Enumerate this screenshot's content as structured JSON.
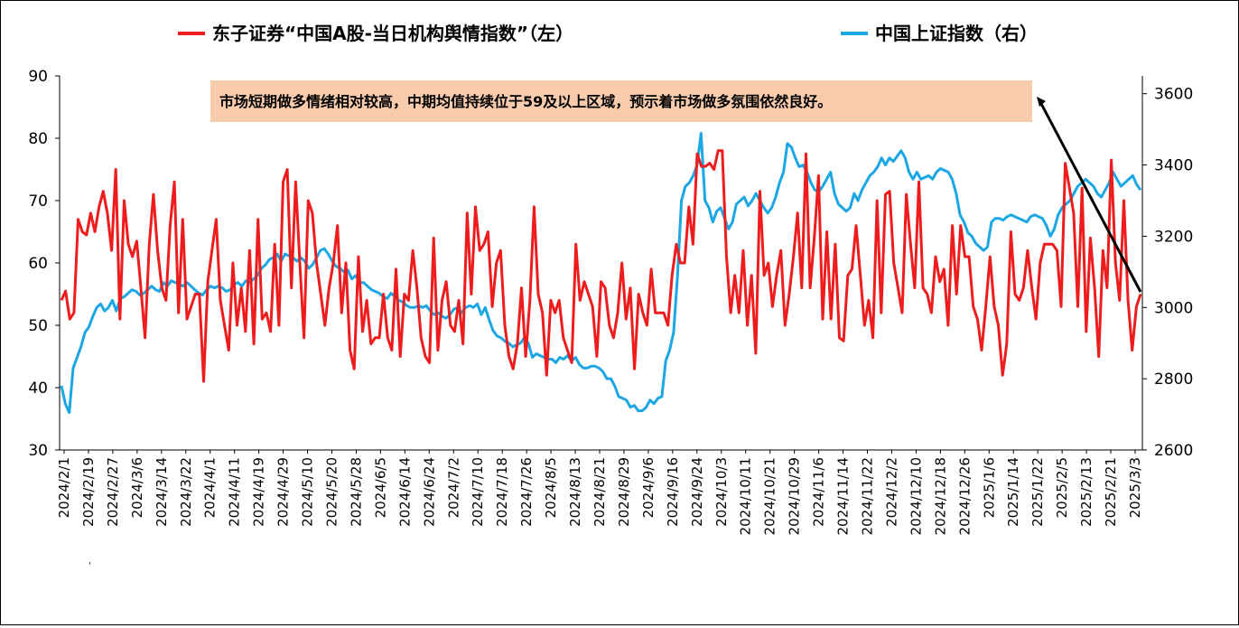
{
  "colors": {
    "series_left": "#ee1c1c",
    "series_right": "#1ba6e4",
    "annotation_bg": "#f8cbad",
    "axis": "#000000",
    "arrow": "#000000"
  },
  "chart_data": {
    "type": "line",
    "title": "",
    "legend": {
      "position": "top",
      "items": [
        "东子证券“中国A股-当日机构舆情指数”（左）",
        "中国上证指数（右）"
      ]
    },
    "grid": false,
    "x_tick_labels": [
      "2024/2/1",
      "2024/2/19",
      "2024/2/27",
      "2024/3/6",
      "2024/3/14",
      "2024/3/22",
      "2024/4/1",
      "2024/4/11",
      "2024/4/19",
      "2024/4/29",
      "2024/5/10",
      "2024/5/20",
      "2024/5/28",
      "2024/6/5",
      "2024/6/14",
      "2024/6/24",
      "2024/7/2",
      "2024/7/10",
      "2024/7/18",
      "2024/7/26",
      "2024/8/5",
      "2024/8/13",
      "2024/8/21",
      "2024/8/29",
      "2024/9/6",
      "2024/9/16",
      "2024/9/24",
      "2024/10/3",
      "2024/10/11",
      "2024/10/21",
      "2024/10/29",
      "2024/11/6",
      "2024/11/14",
      "2024/11/22",
      "2024/12/2",
      "2024/12/10",
      "2024/12/18",
      "2024/12/26",
      "2025/1/6",
      "2025/1/14",
      "2025/1/22",
      "2025/2/5",
      "2025/2/13",
      "2025/2/21",
      "2025/3/3"
    ],
    "y_left": {
      "ticks": [
        30,
        40,
        50,
        60,
        70,
        80,
        90
      ],
      "range": [
        30,
        90
      ]
    },
    "y_right": {
      "ticks": [
        2600,
        2800,
        3000,
        3200,
        3400,
        3600
      ],
      "range": [
        2600,
        3650
      ]
    },
    "series": [
      {
        "name": "东子证券“中国A股-当日机构舆情指数”（左）",
        "axis": "left",
        "x_start": "2024/2/1",
        "x_end": "2025/3/3",
        "values": [
          54,
          55.5,
          51,
          52,
          67,
          65,
          64.5,
          68,
          65,
          69,
          71.5,
          68,
          62,
          75,
          51,
          70,
          63,
          61,
          63.5,
          56,
          48,
          63,
          71,
          62,
          56,
          54,
          66,
          73,
          52,
          67,
          51,
          53,
          55,
          55,
          41,
          57,
          62,
          67,
          54,
          50,
          46,
          60,
          50,
          56,
          49,
          62,
          47,
          67,
          51,
          52,
          49,
          63,
          50,
          73,
          75,
          56,
          73,
          60,
          48,
          70,
          68,
          60,
          55,
          50,
          56,
          60,
          66,
          52,
          60,
          46,
          43,
          61,
          49,
          54,
          47,
          48,
          48,
          55,
          48,
          46,
          59,
          45,
          55,
          54,
          62,
          56,
          48,
          45,
          44,
          64,
          46,
          54,
          57,
          50,
          49,
          54,
          47,
          68,
          55,
          69,
          62,
          63,
          65,
          53,
          60,
          62,
          50,
          45,
          43,
          47,
          56,
          45,
          54,
          69,
          55,
          52,
          42,
          54,
          52,
          54,
          48,
          46,
          44,
          63,
          54,
          57,
          55,
          53,
          45,
          57,
          56,
          50,
          48,
          52,
          60,
          51,
          56,
          43,
          55,
          52,
          50,
          59,
          52,
          52,
          52,
          50,
          58,
          63,
          60,
          60,
          69,
          63,
          77.5,
          75.5,
          75.5,
          76,
          75,
          78,
          78,
          61,
          52,
          58,
          52,
          62,
          50,
          58,
          45.5,
          71.5,
          58,
          60,
          53,
          58,
          62,
          50,
          55,
          61,
          68,
          56,
          77.5,
          56,
          64,
          74,
          51,
          65,
          51,
          63,
          48,
          47.5,
          58,
          59,
          66,
          58,
          50,
          54,
          48,
          70,
          52,
          71,
          71.5,
          60,
          56,
          52,
          71,
          63,
          56,
          73,
          56,
          55,
          52,
          61,
          57,
          59,
          50,
          66,
          55,
          66,
          61,
          61,
          53,
          51,
          46,
          53,
          61,
          53,
          50,
          42,
          47,
          65,
          55,
          54,
          56,
          62,
          56,
          51,
          60,
          63,
          63,
          63,
          62,
          53,
          76,
          72,
          68,
          53,
          72,
          49,
          64,
          56,
          45,
          62,
          56,
          76.5,
          60,
          54,
          70,
          54,
          46,
          53,
          55
        ]
      },
      {
        "name": "中国上证指数（右）",
        "axis": "right",
        "x_start": "2024/2/1",
        "x_end": "2025/3/3",
        "values": [
          2780,
          2730,
          2705,
          2830,
          2860,
          2890,
          2930,
          2945,
          2975,
          3000,
          3010,
          2990,
          3000,
          3020,
          2990,
          3025,
          3030,
          3040,
          3050,
          3045,
          3035,
          3040,
          3050,
          3060,
          3050,
          3045,
          3070,
          3060,
          3075,
          3070,
          3065,
          3060,
          3070,
          3060,
          3050,
          3040,
          3035,
          3050,
          3060,
          3055,
          3060,
          3055,
          3045,
          3050,
          3065,
          3070,
          3060,
          3075,
          3070,
          3080,
          3090,
          3110,
          3120,
          3135,
          3140,
          3150,
          3130,
          3150,
          3145,
          3140,
          3130,
          3140,
          3130,
          3110,
          3120,
          3140,
          3160,
          3165,
          3150,
          3130,
          3115,
          3110,
          3100,
          3105,
          3080,
          3090,
          3070,
          3070,
          3060,
          3050,
          3045,
          3040,
          3030,
          3025,
          3040,
          3030,
          3020,
          3015,
          3005,
          3000,
          3000,
          3005,
          3000,
          3005,
          2990,
          2980,
          2985,
          2975,
          2970,
          2980,
          2995,
          3000,
          2985,
          3000,
          3005,
          3000,
          3010,
          2980,
          3000,
          2965,
          2935,
          2920,
          2915,
          2905,
          2900,
          2890,
          2895,
          2900,
          2915,
          2900,
          2860,
          2870,
          2865,
          2860,
          2855,
          2855,
          2845,
          2860,
          2855,
          2865,
          2850,
          2860,
          2840,
          2830,
          2830,
          2835,
          2835,
          2830,
          2820,
          2800,
          2800,
          2780,
          2750,
          2745,
          2740,
          2720,
          2725,
          2710,
          2710,
          2720,
          2740,
          2730,
          2745,
          2750,
          2850,
          2880,
          2930,
          3087,
          3300,
          3340,
          3350,
          3370,
          3400,
          3489,
          3300,
          3280,
          3240,
          3270,
          3280,
          3250,
          3220,
          3240,
          3290,
          3300,
          3310,
          3285,
          3300,
          3320,
          3300,
          3280,
          3265,
          3280,
          3310,
          3350,
          3380,
          3460,
          3450,
          3420,
          3395,
          3400,
          3380,
          3350,
          3330,
          3325,
          3340,
          3360,
          3380,
          3320,
          3290,
          3280,
          3270,
          3280,
          3320,
          3300,
          3330,
          3350,
          3370,
          3380,
          3395,
          3420,
          3400,
          3420,
          3410,
          3425,
          3440,
          3420,
          3380,
          3360,
          3380,
          3360,
          3365,
          3370,
          3360,
          3380,
          3390,
          3385,
          3380,
          3360,
          3320,
          3260,
          3240,
          3210,
          3200,
          3180,
          3170,
          3160,
          3170,
          3240,
          3250,
          3250,
          3245,
          3255,
          3260,
          3255,
          3250,
          3245,
          3240,
          3255,
          3260,
          3255,
          3250,
          3230,
          3200,
          3220,
          3260,
          3280,
          3290,
          3300,
          3320,
          3340,
          3350,
          3360,
          3350,
          3340,
          3320,
          3310,
          3330,
          3350,
          3380,
          3360,
          3340,
          3350,
          3360,
          3370,
          3345,
          3330
        ]
      }
    ],
    "annotations": [
      {
        "text": "市场短期做多情绪相对较高，中期均值持续位于59及以上区域，预示着市场做多氛围依然良好。",
        "arrow": true
      }
    ]
  }
}
